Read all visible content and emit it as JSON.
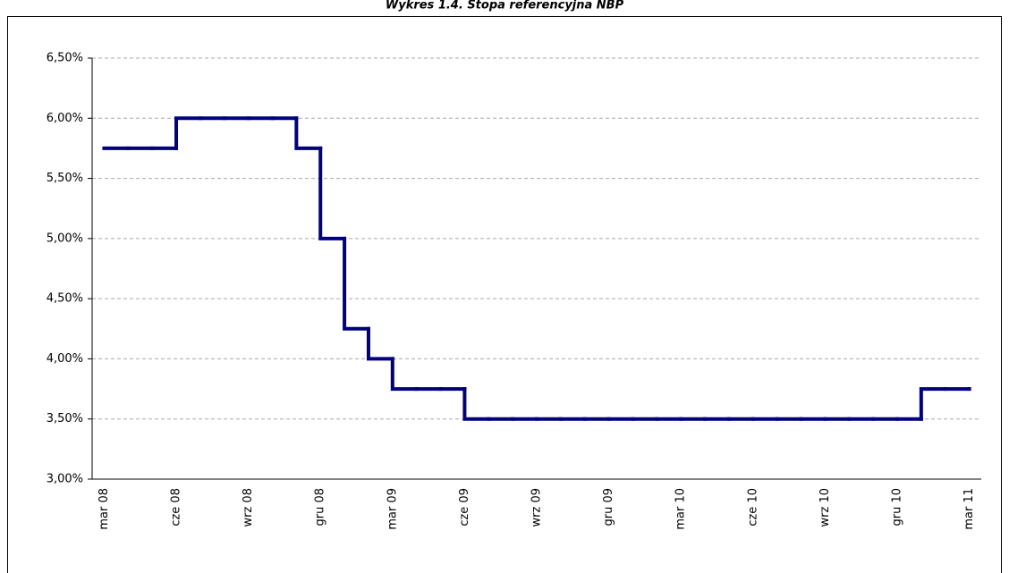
{
  "chart_data": {
    "type": "step",
    "title": "Wykres 1.4. Stopa referencyjna NBP",
    "categories": [
      "mar 08",
      null,
      null,
      "cze 08",
      null,
      null,
      "wrz 08",
      null,
      null,
      "gru 08",
      null,
      null,
      "mar 09",
      null,
      null,
      "cze 09",
      null,
      null,
      "wrz 09",
      null,
      null,
      "gru 09",
      null,
      null,
      "mar 10",
      null,
      null,
      "cze 10",
      null,
      null,
      "wrz 10",
      null,
      null,
      "gru 10",
      null,
      null,
      "mar 11"
    ],
    "values": [
      5.75,
      5.75,
      5.75,
      6.0,
      6.0,
      6.0,
      6.0,
      6.0,
      5.75,
      5.0,
      4.25,
      4.0,
      3.75,
      3.75,
      3.75,
      3.5,
      3.5,
      3.5,
      3.5,
      3.5,
      3.5,
      3.5,
      3.5,
      3.5,
      3.5,
      3.5,
      3.5,
      3.5,
      3.5,
      3.5,
      3.5,
      3.5,
      3.5,
      3.5,
      3.75,
      3.75,
      3.75
    ],
    "color": "#000080",
    "ylim": [
      3.0,
      6.5
    ],
    "yticks": [
      {
        "value": 3.0,
        "label": "3,00%"
      },
      {
        "value": 3.5,
        "label": "3,50%"
      },
      {
        "value": 4.0,
        "label": "4,00%"
      },
      {
        "value": 4.5,
        "label": "4,50%"
      },
      {
        "value": 5.0,
        "label": "5,00%"
      },
      {
        "value": 5.5,
        "label": "5,50%"
      },
      {
        "value": 6.0,
        "label": "6,00%"
      },
      {
        "value": 6.5,
        "label": "6,50%"
      }
    ],
    "grid": true
  }
}
